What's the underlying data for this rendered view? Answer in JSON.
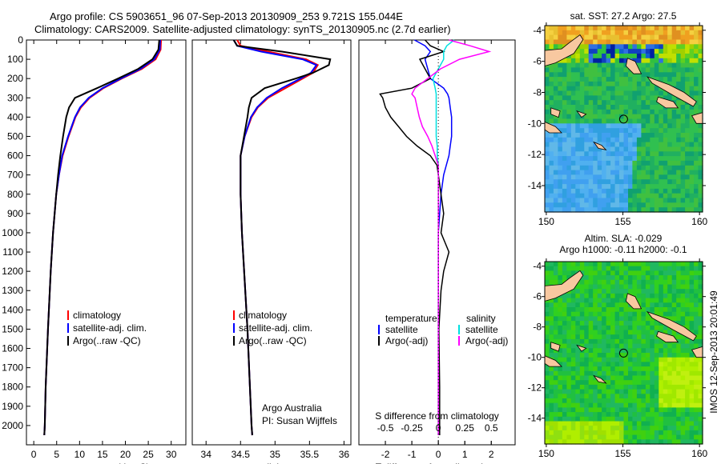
{
  "title": {
    "line1": "Argo profile: CS 5903651_96 07-Sep-2013 20130909_253 9.721S 155.044E",
    "line2": "Climatology: CARS2009. Satellite-adjusted climatology: synTS_20130905.nc (2.7d earlier)"
  },
  "chart_data": [
    {
      "type": "line",
      "id": "temperature",
      "xlabel": "temperature (deg C)",
      "ylabel": "",
      "xlim": [
        -1.6,
        33.2
      ],
      "ylim": [
        2100,
        0
      ],
      "xticks": [
        0,
        5,
        10,
        15,
        20,
        25,
        30
      ],
      "yticks": [
        0,
        100,
        200,
        300,
        400,
        500,
        600,
        700,
        800,
        900,
        1000,
        1100,
        1200,
        1300,
        1400,
        1500,
        1600,
        1700,
        1800,
        1900,
        2000
      ],
      "depth": [
        0,
        50,
        100,
        150,
        200,
        250,
        300,
        350,
        400,
        500,
        600,
        700,
        800,
        1000,
        1200,
        1500,
        1800,
        2000,
        2050
      ],
      "legend": [
        "climatology",
        "satellite-adj. clim.",
        "Argo(..raw -QC)"
      ],
      "series": [
        {
          "name": "climatology",
          "color": "#ff0000",
          "values": [
            27.8,
            27.7,
            26.6,
            23.6,
            19.2,
            15.2,
            12.2,
            10.3,
            9.1,
            7.6,
            6.3,
            5.5,
            4.9,
            4.2,
            3.7,
            3.1,
            2.6,
            2.4,
            2.3
          ]
        },
        {
          "name": "satellite-adj. clim.",
          "color": "#0000ff",
          "values": [
            27.6,
            27.5,
            26.3,
            23.3,
            19.0,
            15.0,
            12.0,
            10.1,
            9.0,
            7.5,
            6.2,
            5.5,
            4.9,
            4.2,
            3.7,
            3.1,
            2.6,
            2.4,
            2.3
          ]
        },
        {
          "name": "Argo(..raw -QC)",
          "color": "#000000",
          "values": [
            27.4,
            27.2,
            25.9,
            22.8,
            18.4,
            13.8,
            9.0,
            7.7,
            7.1,
            6.4,
            5.8,
            5.3,
            4.9,
            4.2,
            3.7,
            3.1,
            2.6,
            2.4,
            2.3
          ]
        }
      ]
    },
    {
      "type": "line",
      "id": "salinity",
      "xlabel": "salinity",
      "xlim": [
        33.8,
        36.1
      ],
      "ylim": [
        2100,
        0
      ],
      "xticks": [
        34,
        34.5,
        35,
        35.5,
        36
      ],
      "depth": [
        0,
        30,
        60,
        100,
        130,
        170,
        200,
        250,
        300,
        350,
        400,
        500,
        600,
        800,
        1000,
        1500,
        2000,
        2050
      ],
      "legend": [
        "climatology",
        "satellite-adj. clim.",
        "Argo(..raw -QC)"
      ],
      "annotation": [
        "Argo Australia",
        "PI: Susan Wijffels"
      ],
      "series": [
        {
          "name": "climatology",
          "color": "#ff0000",
          "values": [
            34.45,
            34.5,
            34.9,
            35.45,
            35.62,
            35.55,
            35.4,
            35.15,
            34.9,
            34.75,
            34.66,
            34.56,
            34.5,
            34.5,
            34.52,
            34.6,
            34.66,
            34.67
          ]
        },
        {
          "name": "satellite-adj. clim.",
          "color": "#0000ff",
          "values": [
            34.4,
            34.45,
            34.8,
            35.4,
            35.6,
            35.52,
            35.37,
            35.1,
            34.88,
            34.74,
            34.65,
            34.56,
            34.5,
            34.5,
            34.52,
            34.6,
            34.66,
            34.67
          ]
        },
        {
          "name": "Argo(..raw -QC)",
          "color": "#000000",
          "values": [
            34.4,
            34.45,
            35.1,
            35.8,
            35.78,
            35.55,
            35.3,
            34.85,
            34.66,
            34.62,
            34.6,
            34.55,
            34.5,
            34.5,
            34.52,
            34.6,
            34.66,
            34.67
          ]
        }
      ]
    },
    {
      "type": "line",
      "id": "difference",
      "xlabel": "T difference from climatology",
      "xlabel2": "S difference from climatology",
      "xlim": [
        -3,
        2.9
      ],
      "xticks": [
        -2,
        -1,
        0,
        1,
        2
      ],
      "xticks2": [
        -0.5,
        -0.25,
        0,
        0.25,
        0.5
      ],
      "xticks2_labels": [
        "-0.5",
        "-0.25",
        "0",
        "0.25",
        "0.5"
      ],
      "ylim": [
        2100,
        0
      ],
      "legend": {
        "temperature": "temperature",
        "salinity": "salinity",
        "t_sat": "satellite",
        "t_argo": "Argo(-adj)",
        "s_sat": "satellite",
        "s_argo": "Argo(-adj)"
      },
      "depth": [
        0,
        30,
        60,
        100,
        150,
        200,
        250,
        280,
        300,
        350,
        400,
        450,
        500,
        550,
        600,
        650,
        700,
        800,
        900,
        1000,
        1100,
        1200,
        1300,
        1500,
        1800,
        2000,
        2050
      ],
      "series": [
        {
          "name": "T satellite",
          "color": "#0000ff",
          "units": "T",
          "values": [
            -0.9,
            -0.5,
            -0.3,
            -0.5,
            -0.4,
            -0.3,
            0.2,
            0.35,
            0.4,
            0.45,
            0.5,
            0.5,
            0.5,
            0.45,
            0.4,
            0.3,
            0.2,
            0.1,
            0.05,
            0,
            0,
            0,
            0,
            0,
            0,
            0,
            0
          ]
        },
        {
          "name": "T Argo(-adj)",
          "color": "#000000",
          "units": "T",
          "values": [
            -0.5,
            -0.3,
            0.2,
            -0.7,
            -0.5,
            -0.3,
            -1.0,
            -2.2,
            -2.1,
            -2.0,
            -1.8,
            -1.5,
            -1.2,
            -0.8,
            -0.3,
            -0.05,
            0,
            0.1,
            0.2,
            0.1,
            0.4,
            0.2,
            0.1,
            0.02,
            0.05,
            0.05,
            0.05
          ]
        },
        {
          "name": "S satellite",
          "color": "#00e0e0",
          "units": "S",
          "values": [
            0.15,
            0.08,
            0.05,
            0.05,
            0.0,
            -0.05,
            -0.03,
            -0.02,
            -0.02,
            -0.02,
            -0.02,
            -0.02,
            -0.02,
            -0.01,
            -0.01,
            0,
            0,
            0,
            0,
            0,
            0,
            0,
            0,
            0,
            0,
            0,
            0
          ]
        },
        {
          "name": "S Argo(-adj)",
          "color": "#ff00ff",
          "units": "S",
          "values": [
            0.1,
            0.3,
            0.48,
            0.2,
            0.02,
            -0.1,
            -0.22,
            -0.25,
            -0.22,
            -0.2,
            -0.18,
            -0.15,
            -0.1,
            -0.06,
            -0.03,
            0,
            0,
            0,
            0,
            0,
            0,
            0,
            0,
            0,
            0,
            0,
            0
          ]
        }
      ]
    }
  ],
  "maps": {
    "sst": {
      "title": "sat. SST: 27.2 Argo: 27.5"
    },
    "sla": {
      "title1": "Altim. SLA: -0.029",
      "title2": "Argo h1000: -0.11 h2000: -0.1"
    },
    "lon_ticks": [
      "150",
      "155",
      "160"
    ],
    "lat_ticks": [
      "-4",
      "-6",
      "-8",
      "-10",
      "-12",
      "-14"
    ],
    "float_position": {
      "lat": -9.721,
      "lon": 155.044
    },
    "credit": "IMOS 12-Sep-2013 20:01:49"
  }
}
